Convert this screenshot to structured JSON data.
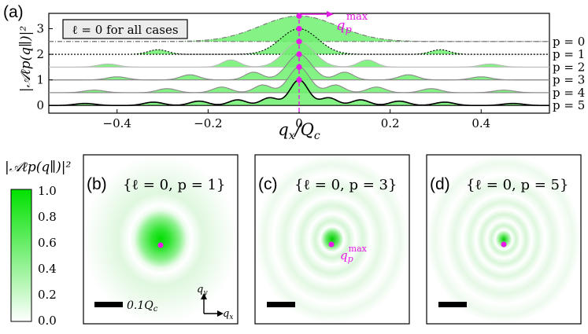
{
  "panel_a": {
    "label": "(a)",
    "legend_box": "ℓ = 0 for all cases",
    "marker_label": "q",
    "marker_sub": "p",
    "marker_sup": "max",
    "xlabel_main": "q",
    "xlabel_sub": "x",
    "xlabel_rest": "/Q",
    "xlabel_sub2": "c",
    "ylabel": "|𝒜ℓp(q∥)|²"
  },
  "colorbar": {
    "title": "|𝒜ℓp(q∥)|²",
    "ticks": [
      "1.0",
      "0.8",
      "0.6",
      "0.4",
      "0.2",
      "0.0"
    ]
  },
  "panels_bcd": [
    {
      "label": "(b)",
      "title": "{ℓ = 0, p = 1}"
    },
    {
      "label": "(c)",
      "title": "{ℓ = 0, p = 3}"
    },
    {
      "label": "(d)",
      "title": "{ℓ = 0, p = 5}"
    }
  ],
  "scale_bar_label": "0.1Q",
  "scale_bar_sub": "c",
  "axes_glyph": {
    "qy": "q",
    "qy_sub": "y",
    "qx": "q",
    "qx_sub": "x"
  },
  "marker_label_c": "q",
  "marker_sub_c": "p",
  "marker_sup_c": "max",
  "colors": {
    "fill": "#66ee66",
    "peak": "#00dd00",
    "marker": "#e619e6",
    "curve": "#000000"
  },
  "chart_data": {
    "type": "area",
    "x_range": [
      -0.55,
      0.55
    ],
    "x_ticks": [
      "−0.4",
      "−0.2",
      "0",
      "0.2",
      "0.4"
    ],
    "x_tick_values": [
      -0.4,
      -0.2,
      0,
      0.2,
      0.4
    ],
    "y_ticks": [
      "0",
      "1",
      "2",
      "3"
    ],
    "y_tick_values": [
      0,
      1,
      2,
      3
    ],
    "series": [
      {
        "name": "p = 0",
        "offset": 2.5,
        "peak": 1.0,
        "lobes": []
      },
      {
        "name": "p = 1",
        "offset": 2.0,
        "peak": 1.0,
        "lobes": [
          [
            0.31,
            0.18
          ]
        ]
      },
      {
        "name": "p = 2",
        "offset": 1.5,
        "peak": 1.0,
        "lobes": [
          [
            0.15,
            0.28
          ],
          [
            0.42,
            0.12
          ]
        ]
      },
      {
        "name": "p = 3",
        "offset": 1.0,
        "peak": 1.0,
        "lobes": [
          [
            0.1,
            0.3
          ],
          [
            0.24,
            0.2
          ],
          [
            0.4,
            0.12
          ]
        ]
      },
      {
        "name": "p = 4",
        "offset": 0.5,
        "peak": 1.0,
        "lobes": [
          [
            0.08,
            0.3
          ],
          [
            0.17,
            0.22
          ],
          [
            0.29,
            0.16
          ],
          [
            0.45,
            0.1
          ]
        ]
      },
      {
        "name": "p = 5",
        "offset": 0.0,
        "peak": 1.0,
        "lobes": [
          [
            0.065,
            0.3
          ],
          [
            0.135,
            0.22
          ],
          [
            0.22,
            0.17
          ],
          [
            0.32,
            0.13
          ],
          [
            0.47,
            0.08
          ]
        ]
      }
    ]
  }
}
